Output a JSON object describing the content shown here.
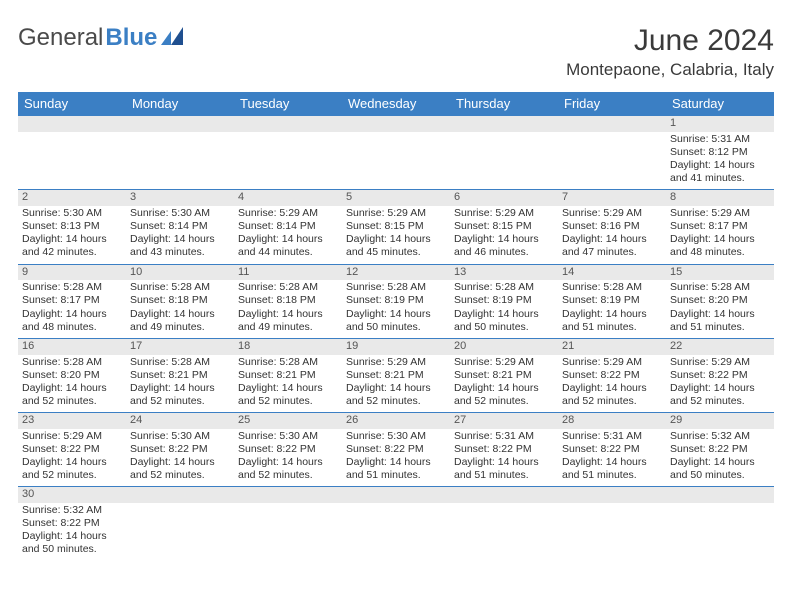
{
  "brand": {
    "general": "General",
    "blue": "Blue"
  },
  "title": "June 2024",
  "location": "Montepaone, Calabria, Italy",
  "colors": {
    "header_blue": "#3b7fc4",
    "daynum_bg": "#e9e9e9",
    "text": "#333333",
    "white": "#ffffff"
  },
  "weekdays": [
    "Sunday",
    "Monday",
    "Tuesday",
    "Wednesday",
    "Thursday",
    "Friday",
    "Saturday"
  ],
  "weeks": [
    [
      {
        "blank": true
      },
      {
        "blank": true
      },
      {
        "blank": true
      },
      {
        "blank": true
      },
      {
        "blank": true
      },
      {
        "blank": true
      },
      {
        "day": "1",
        "sunrise": "Sunrise: 5:31 AM",
        "sunset": "Sunset: 8:12 PM",
        "daylight": "Daylight: 14 hours and 41 minutes."
      }
    ],
    [
      {
        "day": "2",
        "sunrise": "Sunrise: 5:30 AM",
        "sunset": "Sunset: 8:13 PM",
        "daylight": "Daylight: 14 hours and 42 minutes."
      },
      {
        "day": "3",
        "sunrise": "Sunrise: 5:30 AM",
        "sunset": "Sunset: 8:14 PM",
        "daylight": "Daylight: 14 hours and 43 minutes."
      },
      {
        "day": "4",
        "sunrise": "Sunrise: 5:29 AM",
        "sunset": "Sunset: 8:14 PM",
        "daylight": "Daylight: 14 hours and 44 minutes."
      },
      {
        "day": "5",
        "sunrise": "Sunrise: 5:29 AM",
        "sunset": "Sunset: 8:15 PM",
        "daylight": "Daylight: 14 hours and 45 minutes."
      },
      {
        "day": "6",
        "sunrise": "Sunrise: 5:29 AM",
        "sunset": "Sunset: 8:15 PM",
        "daylight": "Daylight: 14 hours and 46 minutes."
      },
      {
        "day": "7",
        "sunrise": "Sunrise: 5:29 AM",
        "sunset": "Sunset: 8:16 PM",
        "daylight": "Daylight: 14 hours and 47 minutes."
      },
      {
        "day": "8",
        "sunrise": "Sunrise: 5:29 AM",
        "sunset": "Sunset: 8:17 PM",
        "daylight": "Daylight: 14 hours and 48 minutes."
      }
    ],
    [
      {
        "day": "9",
        "sunrise": "Sunrise: 5:28 AM",
        "sunset": "Sunset: 8:17 PM",
        "daylight": "Daylight: 14 hours and 48 minutes."
      },
      {
        "day": "10",
        "sunrise": "Sunrise: 5:28 AM",
        "sunset": "Sunset: 8:18 PM",
        "daylight": "Daylight: 14 hours and 49 minutes."
      },
      {
        "day": "11",
        "sunrise": "Sunrise: 5:28 AM",
        "sunset": "Sunset: 8:18 PM",
        "daylight": "Daylight: 14 hours and 49 minutes."
      },
      {
        "day": "12",
        "sunrise": "Sunrise: 5:28 AM",
        "sunset": "Sunset: 8:19 PM",
        "daylight": "Daylight: 14 hours and 50 minutes."
      },
      {
        "day": "13",
        "sunrise": "Sunrise: 5:28 AM",
        "sunset": "Sunset: 8:19 PM",
        "daylight": "Daylight: 14 hours and 50 minutes."
      },
      {
        "day": "14",
        "sunrise": "Sunrise: 5:28 AM",
        "sunset": "Sunset: 8:19 PM",
        "daylight": "Daylight: 14 hours and 51 minutes."
      },
      {
        "day": "15",
        "sunrise": "Sunrise: 5:28 AM",
        "sunset": "Sunset: 8:20 PM",
        "daylight": "Daylight: 14 hours and 51 minutes."
      }
    ],
    [
      {
        "day": "16",
        "sunrise": "Sunrise: 5:28 AM",
        "sunset": "Sunset: 8:20 PM",
        "daylight": "Daylight: 14 hours and 52 minutes."
      },
      {
        "day": "17",
        "sunrise": "Sunrise: 5:28 AM",
        "sunset": "Sunset: 8:21 PM",
        "daylight": "Daylight: 14 hours and 52 minutes."
      },
      {
        "day": "18",
        "sunrise": "Sunrise: 5:28 AM",
        "sunset": "Sunset: 8:21 PM",
        "daylight": "Daylight: 14 hours and 52 minutes."
      },
      {
        "day": "19",
        "sunrise": "Sunrise: 5:29 AM",
        "sunset": "Sunset: 8:21 PM",
        "daylight": "Daylight: 14 hours and 52 minutes."
      },
      {
        "day": "20",
        "sunrise": "Sunrise: 5:29 AM",
        "sunset": "Sunset: 8:21 PM",
        "daylight": "Daylight: 14 hours and 52 minutes."
      },
      {
        "day": "21",
        "sunrise": "Sunrise: 5:29 AM",
        "sunset": "Sunset: 8:22 PM",
        "daylight": "Daylight: 14 hours and 52 minutes."
      },
      {
        "day": "22",
        "sunrise": "Sunrise: 5:29 AM",
        "sunset": "Sunset: 8:22 PM",
        "daylight": "Daylight: 14 hours and 52 minutes."
      }
    ],
    [
      {
        "day": "23",
        "sunrise": "Sunrise: 5:29 AM",
        "sunset": "Sunset: 8:22 PM",
        "daylight": "Daylight: 14 hours and 52 minutes."
      },
      {
        "day": "24",
        "sunrise": "Sunrise: 5:30 AM",
        "sunset": "Sunset: 8:22 PM",
        "daylight": "Daylight: 14 hours and 52 minutes."
      },
      {
        "day": "25",
        "sunrise": "Sunrise: 5:30 AM",
        "sunset": "Sunset: 8:22 PM",
        "daylight": "Daylight: 14 hours and 52 minutes."
      },
      {
        "day": "26",
        "sunrise": "Sunrise: 5:30 AM",
        "sunset": "Sunset: 8:22 PM",
        "daylight": "Daylight: 14 hours and 51 minutes."
      },
      {
        "day": "27",
        "sunrise": "Sunrise: 5:31 AM",
        "sunset": "Sunset: 8:22 PM",
        "daylight": "Daylight: 14 hours and 51 minutes."
      },
      {
        "day": "28",
        "sunrise": "Sunrise: 5:31 AM",
        "sunset": "Sunset: 8:22 PM",
        "daylight": "Daylight: 14 hours and 51 minutes."
      },
      {
        "day": "29",
        "sunrise": "Sunrise: 5:32 AM",
        "sunset": "Sunset: 8:22 PM",
        "daylight": "Daylight: 14 hours and 50 minutes."
      }
    ],
    [
      {
        "day": "30",
        "sunrise": "Sunrise: 5:32 AM",
        "sunset": "Sunset: 8:22 PM",
        "daylight": "Daylight: 14 hours and 50 minutes."
      },
      {
        "blank": true
      },
      {
        "blank": true
      },
      {
        "blank": true
      },
      {
        "blank": true
      },
      {
        "blank": true
      },
      {
        "blank": true
      }
    ]
  ]
}
